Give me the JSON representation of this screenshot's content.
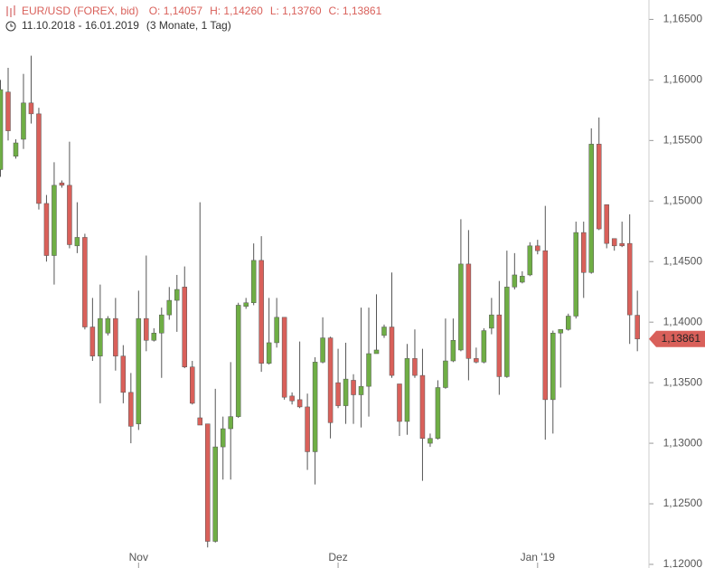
{
  "chart_data": {
    "type": "candlestick",
    "title": "EUR/USD (FOREX, bid)",
    "summary": [
      "O: 1,14057",
      "H: 1,14260",
      "L: 1,13760",
      "C: 1,13861"
    ],
    "subtitle": "11.10.2018 - 16.01.2019",
    "period": "(3 Monate, 1 Tag)",
    "categories": [
      null,
      null,
      null,
      null,
      null,
      null,
      null,
      null,
      null,
      null,
      null,
      null,
      null,
      null,
      null,
      null,
      null,
      null,
      "Nov",
      null,
      null,
      null,
      null,
      null,
      null,
      null,
      null,
      null,
      null,
      null,
      null,
      null,
      null,
      null,
      null,
      null,
      null,
      null,
      null,
      null,
      null,
      null,
      null,
      null,
      "Dez",
      null,
      null,
      null,
      null,
      null,
      null,
      null,
      null,
      null,
      null,
      null,
      null,
      null,
      null,
      null,
      null,
      null,
      null,
      null,
      null,
      null,
      null,
      null,
      null,
      null,
      "Jan '19",
      null,
      null,
      null,
      null,
      null,
      null,
      null,
      null,
      null,
      null,
      null,
      null,
      null
    ],
    "open": [
      1.1526,
      1.159,
      1.1537,
      1.1551,
      1.1581,
      1.1572,
      1.1498,
      1.1455,
      1.1515,
      1.1513,
      1.1463,
      1.147,
      1.1396,
      1.1372,
      1.1391,
      1.1403,
      1.1372,
      1.1342,
      1.1316,
      1.1403,
      1.1385,
      1.1391,
      1.1406,
      1.1418,
      1.1429,
      1.1363,
      1.1321,
      1.1316,
      1.1219,
      1.1297,
      1.1312,
      1.1322,
      1.1413,
      1.1416,
      1.1451,
      1.1366,
      1.1383,
      1.1404,
      1.1339,
      1.1336,
      1.133,
      1.1293,
      1.1367,
      1.1387,
      1.135,
      1.1331,
      1.1352,
      1.134,
      1.1347,
      1.1374,
      1.1389,
      1.1396,
      1.1349,
      1.1318,
      1.137,
      1.1356,
      1.13,
      1.1304,
      1.1346,
      1.1368,
      1.1377,
      1.1448,
      1.137,
      1.1367,
      1.1395,
      1.1406,
      1.1355,
      1.1429,
      1.1433,
      1.1439,
      1.1463,
      1.1459,
      1.1336,
      1.1391,
      1.1394,
      1.1405,
      1.1474,
      1.1441,
      1.1547,
      1.1497,
      1.1469,
      1.1465,
      1.1465,
      1.14057
    ],
    "high": [
      1.16,
      1.161,
      1.1551,
      1.1605,
      1.162,
      1.1577,
      1.1505,
      1.1532,
      1.1517,
      1.1549,
      1.1499,
      1.1473,
      1.142,
      1.1431,
      1.1405,
      1.142,
      1.1381,
      1.1358,
      1.1426,
      1.1455,
      1.1395,
      1.1412,
      1.1429,
      1.1439,
      1.1446,
      1.1368,
      1.1499,
      1.1316,
      1.1345,
      1.1322,
      1.1367,
      1.1416,
      1.142,
      1.1465,
      1.1471,
      1.142,
      1.142,
      1.1404,
      1.1342,
      1.1384,
      1.1341,
      1.1371,
      1.1404,
      1.1388,
      1.1378,
      1.1383,
      1.1357,
      1.1412,
      1.1412,
      1.1423,
      1.1398,
      1.1441,
      1.1349,
      1.1382,
      1.1394,
      1.1378,
      1.1308,
      1.1352,
      1.1403,
      1.1403,
      1.1485,
      1.1476,
      1.1379,
      1.1395,
      1.142,
      1.1434,
      1.1459,
      1.1457,
      1.1442,
      1.1466,
      1.1468,
      1.1496,
      1.1393,
      1.1394,
      1.1407,
      1.1483,
      1.1483,
      1.156,
      1.1569,
      1.1497,
      1.1469,
      1.1483,
      1.1489,
      1.1426
    ],
    "low": [
      1.152,
      1.155,
      1.1535,
      1.1543,
      1.1564,
      1.1493,
      1.145,
      1.1431,
      1.1511,
      1.1461,
      1.1457,
      1.1394,
      1.1368,
      1.1333,
      1.1389,
      1.136,
      1.1333,
      1.13,
      1.1311,
      1.1376,
      1.1384,
      1.1354,
      1.1402,
      1.1392,
      1.1362,
      1.1332,
      1.1315,
      1.1214,
      1.1218,
      1.127,
      1.127,
      1.1321,
      1.1411,
      1.1414,
      1.1359,
      1.1365,
      1.1379,
      1.1336,
      1.1332,
      1.1329,
      1.1278,
      1.1266,
      1.1366,
      1.1304,
      1.1329,
      1.1316,
      1.1316,
      1.1313,
      1.1322,
      1.1374,
      1.1387,
      1.1354,
      1.1306,
      1.1307,
      1.1354,
      1.1269,
      1.1297,
      1.1303,
      1.1345,
      1.1367,
      1.1376,
      1.1352,
      1.1366,
      1.1366,
      1.139,
      1.134,
      1.1354,
      1.1427,
      1.1432,
      1.1438,
      1.1456,
      1.1303,
      1.1308,
      1.1346,
      1.1393,
      1.1403,
      1.142,
      1.144,
      1.1476,
      1.1461,
      1.1459,
      1.1462,
      1.1382,
      1.1376
    ],
    "close": [
      1.1592,
      1.1558,
      1.1548,
      1.1581,
      1.1572,
      1.1498,
      1.1455,
      1.1513,
      1.1513,
      1.1464,
      1.147,
      1.1396,
      1.1372,
      1.1403,
      1.1403,
      1.1372,
      1.1342,
      1.1314,
      1.1403,
      1.1385,
      1.1391,
      1.1406,
      1.1418,
      1.1427,
      1.1363,
      1.1333,
      1.1315,
      1.1219,
      1.1297,
      1.1312,
      1.1322,
      1.1414,
      1.1416,
      1.1451,
      1.1366,
      1.1383,
      1.1404,
      1.1338,
      1.1335,
      1.133,
      1.1293,
      1.1367,
      1.1387,
      1.1317,
      1.1331,
      1.1353,
      1.134,
      1.1347,
      1.1374,
      1.1377,
      1.1396,
      1.1356,
      1.1318,
      1.137,
      1.1356,
      1.1304,
      1.1304,
      1.1346,
      1.1368,
      1.1385,
      1.1448,
      1.137,
      1.1367,
      1.1393,
      1.1406,
      1.1355,
      1.1429,
      1.1439,
      1.1438,
      1.1463,
      1.1459,
      1.1336,
      1.1391,
      1.1394,
      1.1405,
      1.1474,
      1.1441,
      1.1547,
      1.1477,
      1.1465,
      1.1463,
      1.1463,
      1.1406,
      1.13861
    ],
    "last_label": "1,13861",
    "up_color": "#6fae45",
    "down_color": "#d9605a",
    "ylim": [
      1.1197,
      1.1666
    ],
    "yticks": [
      {
        "value": 1.12,
        "label": "1,12000"
      },
      {
        "value": 1.125,
        "label": "1,12500"
      },
      {
        "value": 1.13,
        "label": "1,13000"
      },
      {
        "value": 1.135,
        "label": "1,13500"
      },
      {
        "value": 1.14,
        "label": "1,14000"
      },
      {
        "value": 1.145,
        "label": "1,14500"
      },
      {
        "value": 1.15,
        "label": "1,15000"
      },
      {
        "value": 1.155,
        "label": "1,15500"
      },
      {
        "value": 1.16,
        "label": "1,16000"
      },
      {
        "value": 1.165,
        "label": "1,16500"
      }
    ]
  }
}
